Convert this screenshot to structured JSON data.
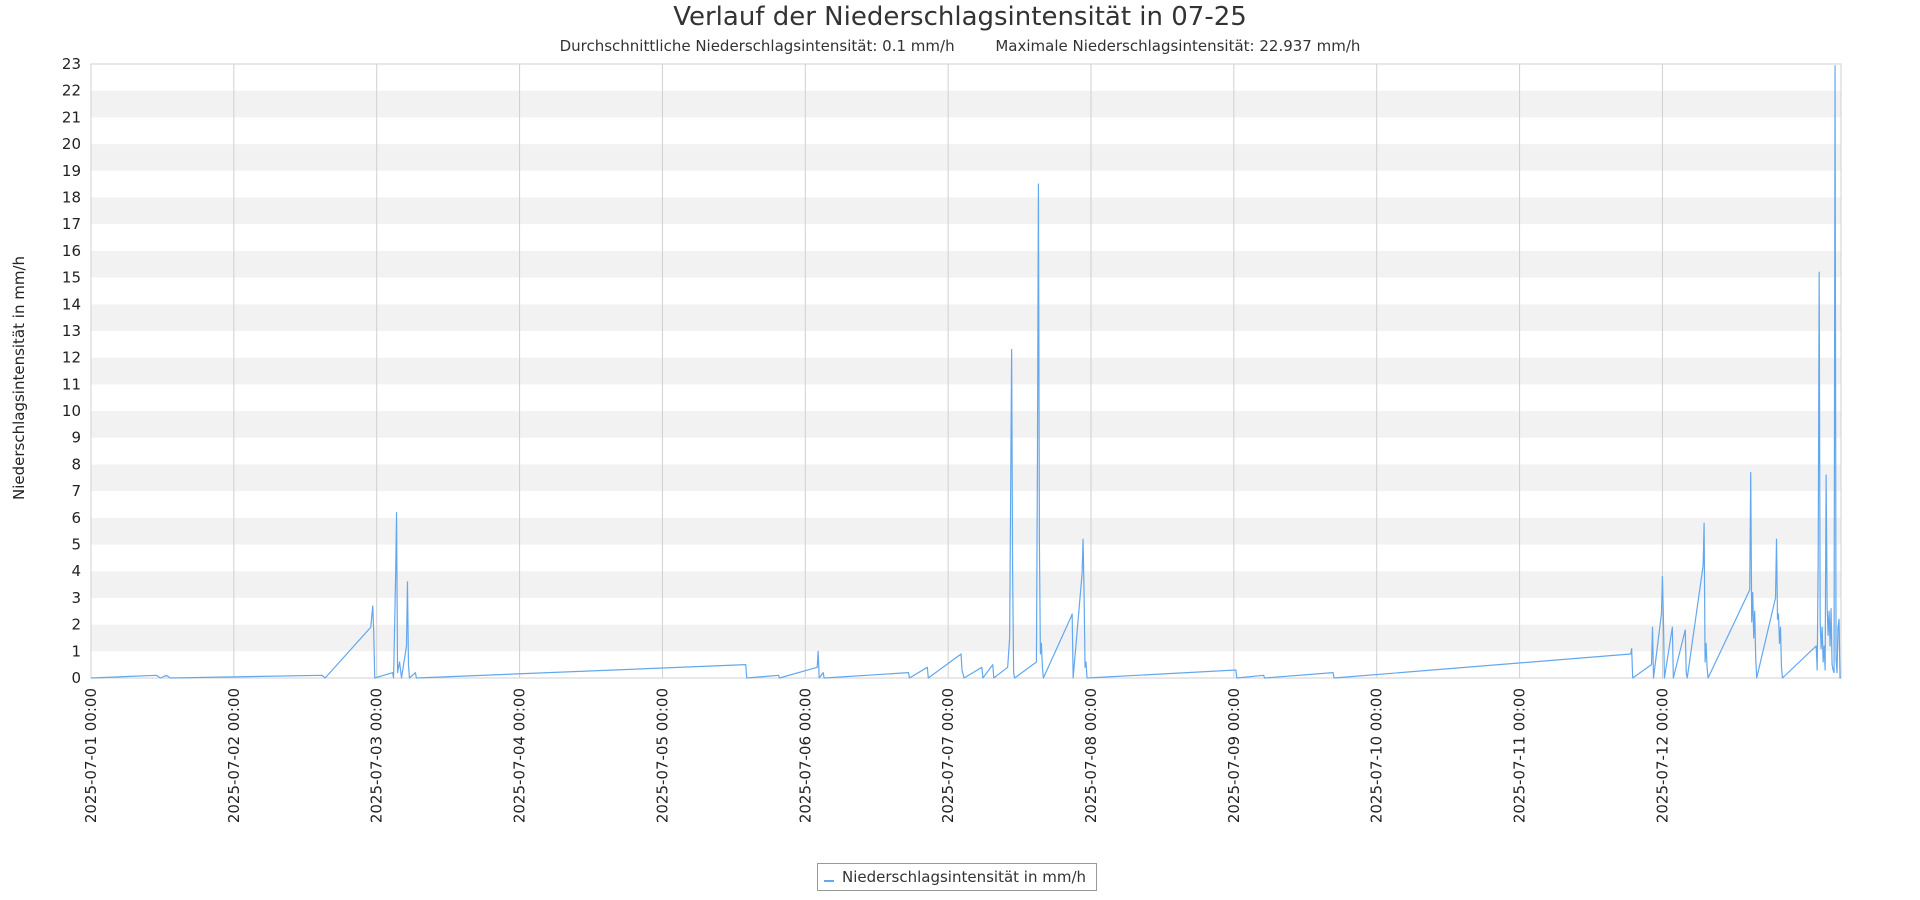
{
  "colors": {
    "series": "#63a8ee",
    "band": "#f2f2f2",
    "grid": "#d0d0d0",
    "axis_text": "#222222"
  },
  "chart_data": {
    "type": "line",
    "title": "Verlauf der Niederschlagsintensität in 07-25",
    "subtitle": [
      "Durchschnittliche Niederschlagsintensität: 0.1 mm/h",
      "Maximale Niederschlagsintensität: 22.937 mm/h"
    ],
    "xlabel": "",
    "ylabel": "Niederschlagsintensität in mm/h",
    "x_tick_labels": [
      "2025-07-01 00:00",
      "2025-07-02 00:00",
      "2025-07-03 00:00",
      "2025-07-04 00:00",
      "2025-07-05 00:00",
      "2025-07-06 00:00",
      "2025-07-07 00:00",
      "2025-07-08 00:00",
      "2025-07-09 00:00",
      "2025-07-10 00:00",
      "2025-07-11 00:00",
      "2025-07-12 00:00"
    ],
    "xlim": [
      "2025-07-01 00:00",
      "2025-07-13 06:00"
    ],
    "ylim": [
      0,
      23
    ],
    "y_ticks": [
      0,
      1,
      2,
      3,
      4,
      5,
      6,
      7,
      8,
      9,
      10,
      11,
      12,
      13,
      14,
      15,
      16,
      17,
      18,
      19,
      20,
      21,
      22,
      23
    ],
    "grid": true,
    "legend_position": "bottom-center",
    "series": [
      {
        "name": "Niederschlagsintensität in mm/h",
        "points": [
          [
            "2025-07-01 00:00",
            0
          ],
          [
            "2025-07-01 11:00",
            0.1
          ],
          [
            "2025-07-01 11:40",
            0
          ],
          [
            "2025-07-01 12:40",
            0.1
          ],
          [
            "2025-07-01 13:20",
            0
          ],
          [
            "2025-07-02 14:50",
            0.1
          ],
          [
            "2025-07-02 15:20",
            0
          ],
          [
            "2025-07-02 23:00",
            1.9
          ],
          [
            "2025-07-02 23:20",
            2.7
          ],
          [
            "2025-07-02 23:30",
            1.7
          ],
          [
            "2025-07-02 23:40",
            0
          ],
          [
            "2025-07-03 02:40",
            0.2
          ],
          [
            "2025-07-03 02:50",
            0
          ],
          [
            "2025-07-03 03:10",
            3.7
          ],
          [
            "2025-07-03 03:20",
            6.2
          ],
          [
            "2025-07-03 03:30",
            0.2
          ],
          [
            "2025-07-03 03:50",
            0.6
          ],
          [
            "2025-07-03 04:00",
            0.3
          ],
          [
            "2025-07-03 04:10",
            0
          ],
          [
            "2025-07-03 05:00",
            1.2
          ],
          [
            "2025-07-03 05:10",
            3.6
          ],
          [
            "2025-07-03 05:20",
            0.5
          ],
          [
            "2025-07-03 05:30",
            0
          ],
          [
            "2025-07-03 06:30",
            0.2
          ],
          [
            "2025-07-03 06:40",
            0
          ],
          [
            "2025-07-05 14:00",
            0.5
          ],
          [
            "2025-07-05 14:10",
            0
          ],
          [
            "2025-07-05 19:30",
            0.1
          ],
          [
            "2025-07-05 19:40",
            0
          ],
          [
            "2025-07-06 02:00",
            0.4
          ],
          [
            "2025-07-06 02:10",
            1
          ],
          [
            "2025-07-06 02:20",
            0
          ],
          [
            "2025-07-06 03:00",
            0.2
          ],
          [
            "2025-07-06 03:10",
            0
          ],
          [
            "2025-07-06 17:20",
            0.2
          ],
          [
            "2025-07-06 17:30",
            0
          ],
          [
            "2025-07-06 20:30",
            0.4
          ],
          [
            "2025-07-06 20:40",
            0
          ],
          [
            "2025-07-07 02:10",
            0.9
          ],
          [
            "2025-07-07 02:20",
            0.3
          ],
          [
            "2025-07-07 02:40",
            0
          ],
          [
            "2025-07-07 05:40",
            0.4
          ],
          [
            "2025-07-07 05:50",
            0
          ],
          [
            "2025-07-07 07:30",
            0.5
          ],
          [
            "2025-07-07 07:40",
            0
          ],
          [
            "2025-07-07 10:00",
            0.4
          ],
          [
            "2025-07-07 10:20",
            1.5
          ],
          [
            "2025-07-07 10:40",
            12.3
          ],
          [
            "2025-07-07 10:50",
            4
          ],
          [
            "2025-07-07 11:00",
            0.2
          ],
          [
            "2025-07-07 11:10",
            0
          ],
          [
            "2025-07-07 14:50",
            0.6
          ],
          [
            "2025-07-07 15:00",
            8.1
          ],
          [
            "2025-07-07 15:10",
            18.5
          ],
          [
            "2025-07-07 15:20",
            5
          ],
          [
            "2025-07-07 15:30",
            0.9
          ],
          [
            "2025-07-07 15:40",
            1.3
          ],
          [
            "2025-07-07 15:50",
            0.4
          ],
          [
            "2025-07-07 16:00",
            0
          ],
          [
            "2025-07-07 20:40",
            2.3
          ],
          [
            "2025-07-07 20:50",
            2.4
          ],
          [
            "2025-07-07 21:00",
            0
          ],
          [
            "2025-07-07 22:30",
            3.9
          ],
          [
            "2025-07-07 22:40",
            5.2
          ],
          [
            "2025-07-07 22:50",
            3.2
          ],
          [
            "2025-07-07 23:00",
            0.4
          ],
          [
            "2025-07-07 23:10",
            0.6
          ],
          [
            "2025-07-07 23:20",
            0
          ],
          [
            "2025-07-09 00:20",
            0.3
          ],
          [
            "2025-07-09 00:30",
            0
          ],
          [
            "2025-07-09 05:00",
            0.1
          ],
          [
            "2025-07-09 05:10",
            0
          ],
          [
            "2025-07-09 16:40",
            0.2
          ],
          [
            "2025-07-09 16:50",
            0
          ],
          [
            "2025-07-11 18:40",
            0.9
          ],
          [
            "2025-07-11 18:50",
            1.1
          ],
          [
            "2025-07-11 19:00",
            0
          ],
          [
            "2025-07-11 22:10",
            0.5
          ],
          [
            "2025-07-11 22:20",
            1.9
          ],
          [
            "2025-07-11 22:30",
            0
          ],
          [
            "2025-07-11 23:50",
            2.4
          ],
          [
            "2025-07-12 00:00",
            3.8
          ],
          [
            "2025-07-12 00:10",
            2.2
          ],
          [
            "2025-07-12 00:20",
            0
          ],
          [
            "2025-07-12 01:40",
            1.9
          ],
          [
            "2025-07-12 01:50",
            0
          ],
          [
            "2025-07-12 03:50",
            1.8
          ],
          [
            "2025-07-12 04:00",
            0.2
          ],
          [
            "2025-07-12 04:10",
            0
          ],
          [
            "2025-07-12 06:50",
            4.2
          ],
          [
            "2025-07-12 07:00",
            5.8
          ],
          [
            "2025-07-12 07:10",
            0.6
          ],
          [
            "2025-07-12 07:20",
            1.3
          ],
          [
            "2025-07-12 07:30",
            0.4
          ],
          [
            "2025-07-12 07:40",
            0
          ],
          [
            "2025-07-12 14:40",
            3.3
          ],
          [
            "2025-07-12 14:50",
            7.7
          ],
          [
            "2025-07-12 15:00",
            2.1
          ],
          [
            "2025-07-12 15:10",
            3.2
          ],
          [
            "2025-07-12 15:20",
            1.5
          ],
          [
            "2025-07-12 15:30",
            2.5
          ],
          [
            "2025-07-12 15:40",
            0.8
          ],
          [
            "2025-07-12 15:50",
            0
          ],
          [
            "2025-07-12 19:00",
            3
          ],
          [
            "2025-07-12 19:10",
            5.2
          ],
          [
            "2025-07-12 19:20",
            2.2
          ],
          [
            "2025-07-12 19:30",
            2.4
          ],
          [
            "2025-07-12 19:40",
            1.3
          ],
          [
            "2025-07-12 19:50",
            1.9
          ],
          [
            "2025-07-12 20:00",
            0.4
          ],
          [
            "2025-07-12 20:10",
            0
          ],
          [
            "2025-07-13 01:50",
            1.2
          ],
          [
            "2025-07-13 02:00",
            0.3
          ],
          [
            "2025-07-13 02:10",
            4.4
          ],
          [
            "2025-07-13 02:20",
            15.2
          ],
          [
            "2025-07-13 02:30",
            2.1
          ],
          [
            "2025-07-13 02:40",
            1.1
          ],
          [
            "2025-07-13 02:50",
            1.9
          ],
          [
            "2025-07-13 03:00",
            0.6
          ],
          [
            "2025-07-13 03:10",
            1.2
          ],
          [
            "2025-07-13 03:20",
            0.3
          ],
          [
            "2025-07-13 03:30",
            7.6
          ],
          [
            "2025-07-13 03:40",
            2.7
          ],
          [
            "2025-07-13 03:50",
            1.6
          ],
          [
            "2025-07-13 04:00",
            2.5
          ],
          [
            "2025-07-13 04:10",
            1.2
          ],
          [
            "2025-07-13 04:20",
            2.6
          ],
          [
            "2025-07-13 04:30",
            0.5
          ],
          [
            "2025-07-13 04:40",
            0.3
          ],
          [
            "2025-07-13 04:50",
            0.2
          ],
          [
            "2025-07-13 05:00",
            22.937
          ],
          [
            "2025-07-13 05:10",
            0.7
          ],
          [
            "2025-07-13 05:20",
            0.2
          ],
          [
            "2025-07-13 05:30",
            1.9
          ],
          [
            "2025-07-13 05:40",
            2.2
          ],
          [
            "2025-07-13 05:50",
            0
          ],
          [
            "2025-07-13 06:00",
            0
          ]
        ]
      }
    ]
  }
}
